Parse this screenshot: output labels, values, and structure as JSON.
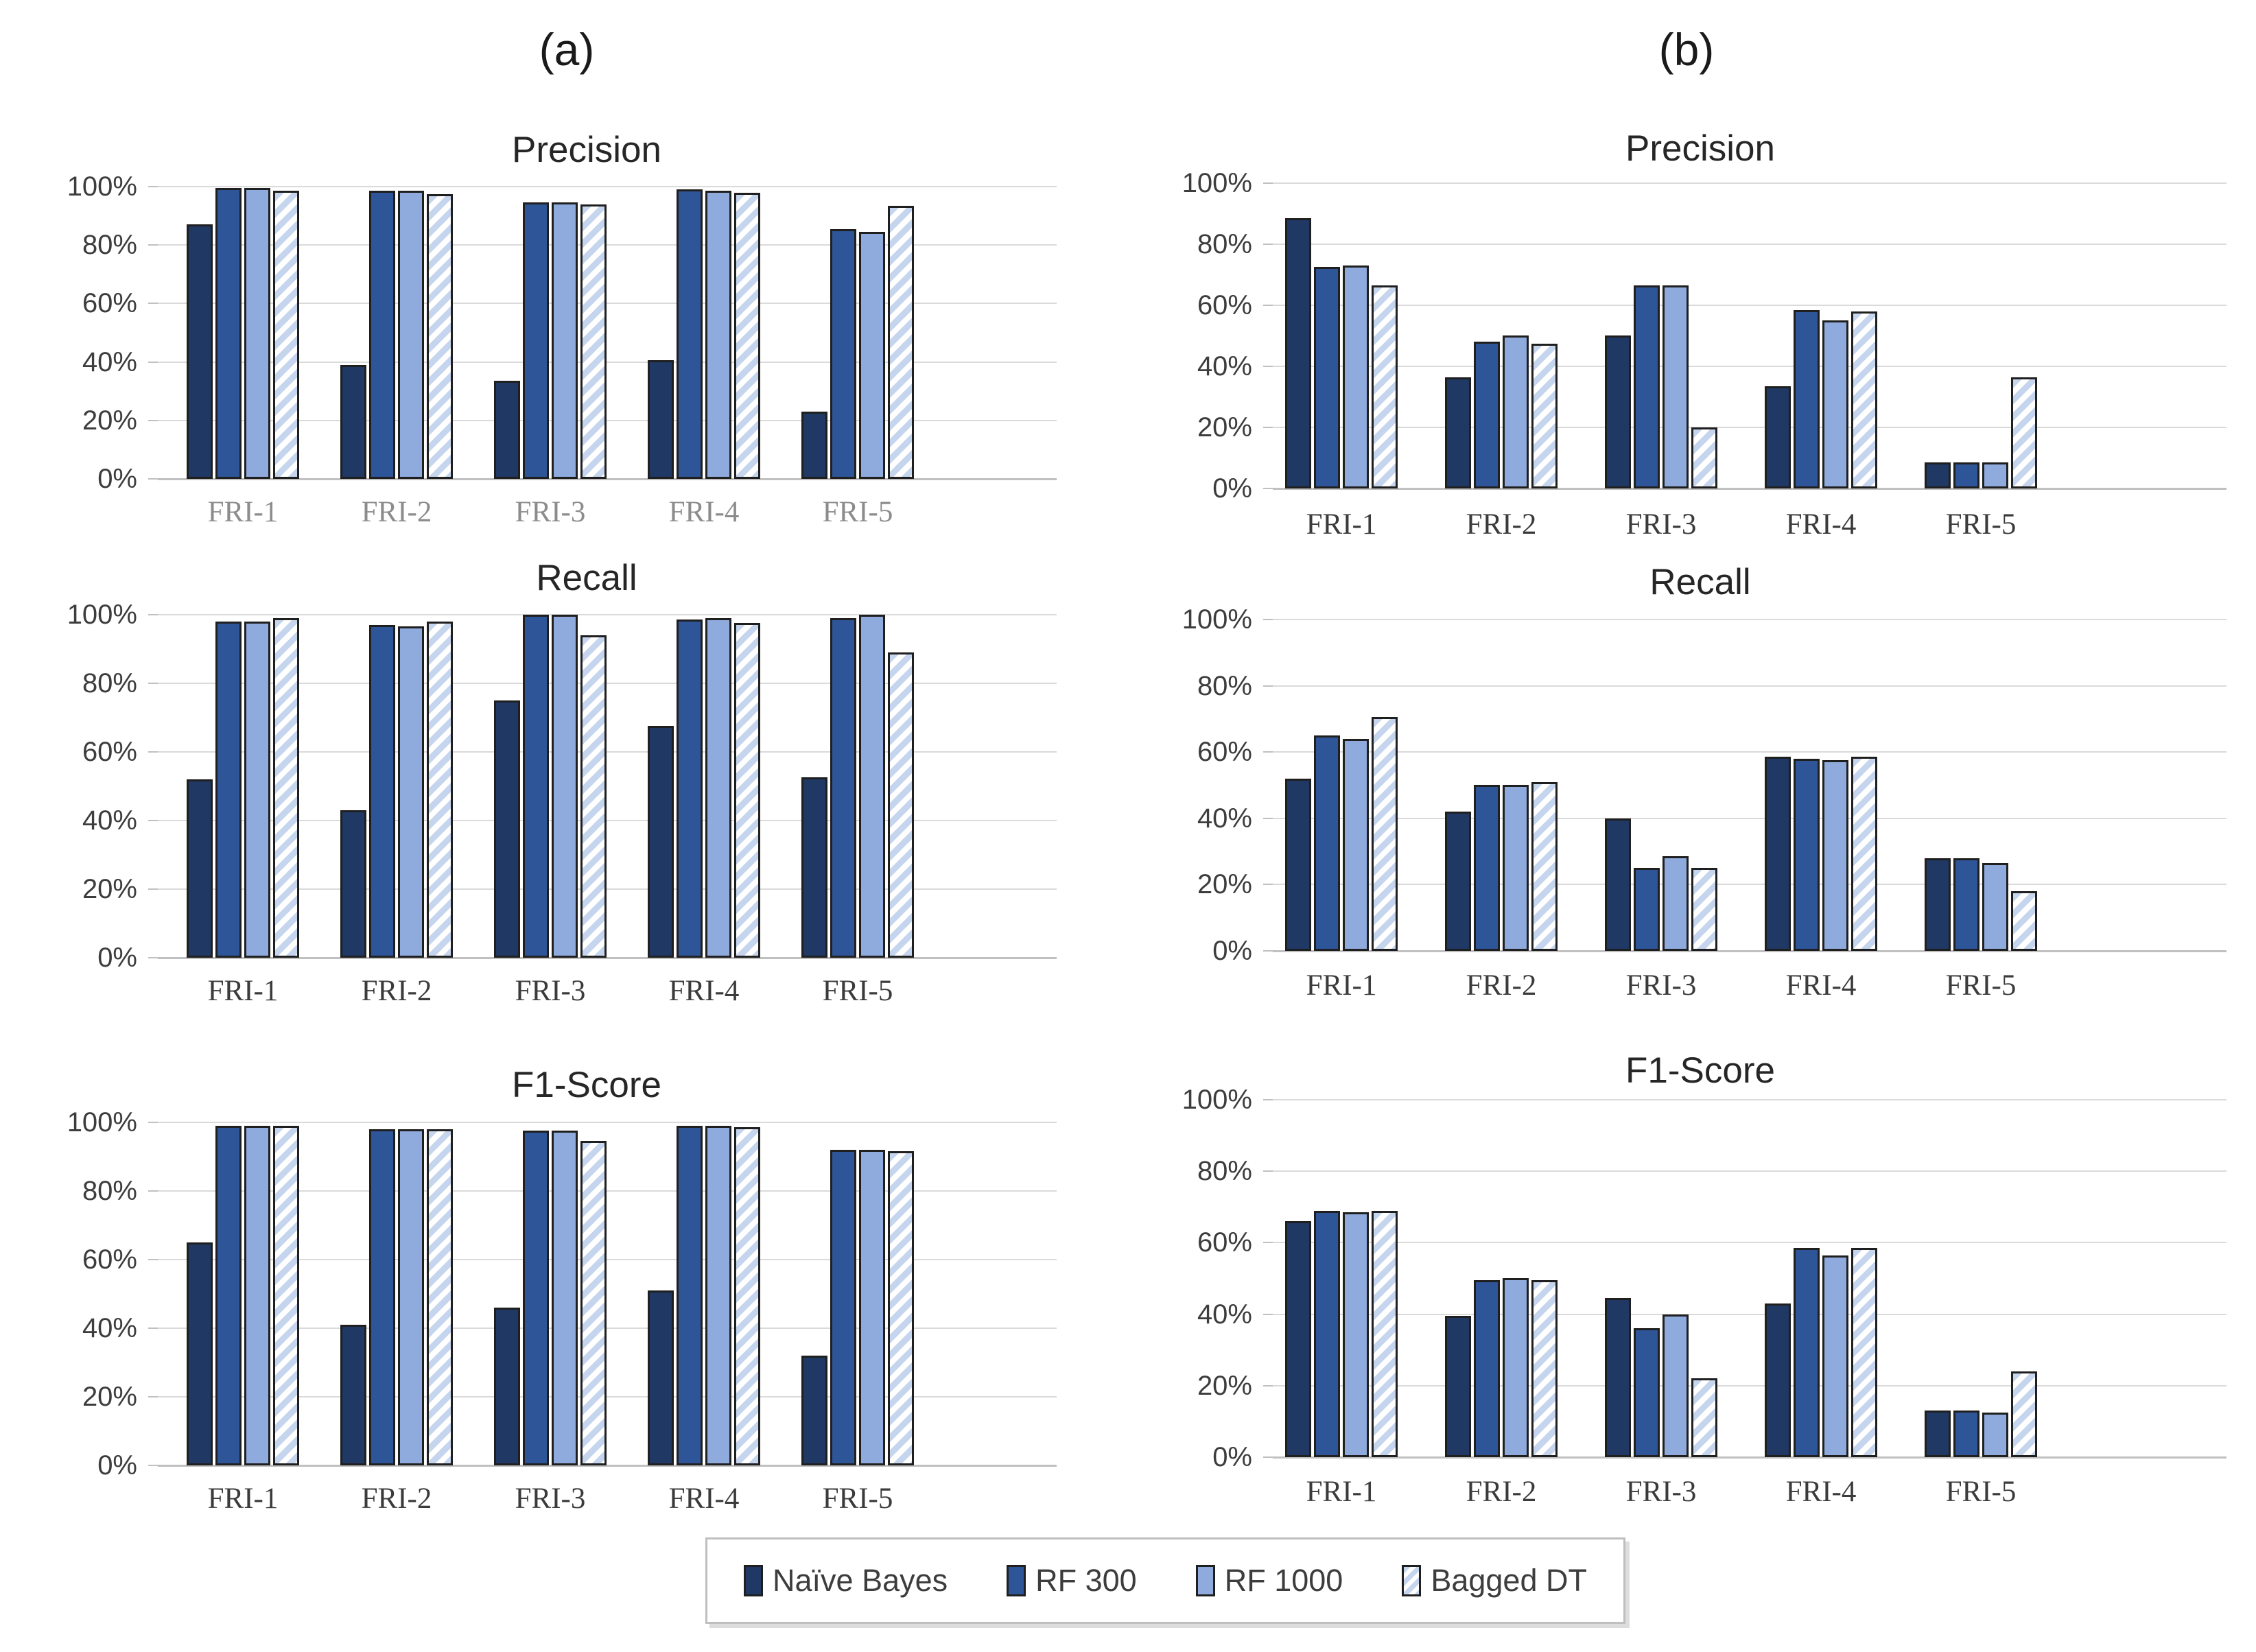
{
  "panel_labels": {
    "a": "(a)",
    "b": "(b)"
  },
  "colors": {
    "series": {
      "naive_bayes": "#1F3864",
      "rf_300": "#2E5597",
      "rf_1000": "#8FAADC",
      "bagged_dt_base": "#C6D5EE",
      "bagged_dt_stripe": "#FFFFFF"
    },
    "bar_border": "#1F1F1F",
    "gridline": "#DADADA",
    "axis_line": "#C0C0C0",
    "title_text": "#262626",
    "ytick_text": "#3D3D3D",
    "xtick_text_default": "#3B3B3B",
    "xtick_text_muted": "#8C8C8C",
    "legend_border": "#BFBFBF",
    "legend_text": "#3D3D3D"
  },
  "legend": {
    "items": [
      {
        "label": "Naïve Bayes",
        "pattern": "solid",
        "color_key": "naive_bayes"
      },
      {
        "label": "RF 300",
        "pattern": "solid",
        "color_key": "rf_300"
      },
      {
        "label": "RF 1000",
        "pattern": "solid",
        "color_key": "rf_1000"
      },
      {
        "label": "Bagged DT",
        "pattern": "striped",
        "color_key": "bagged_dt_base"
      }
    ]
  },
  "chart_data": [
    {
      "id": "a-precision",
      "panel": "a",
      "type": "bar",
      "title": "Precision",
      "categories": [
        "FRI-1",
        "FRI-2",
        "FRI-3",
        "FRI-4",
        "FRI-5"
      ],
      "series": [
        {
          "name": "Naïve Bayes",
          "values": [
            87,
            39,
            33.5,
            40.5,
            23
          ]
        },
        {
          "name": "RF 300",
          "values": [
            99.5,
            98.5,
            94.5,
            99,
            85.5
          ]
        },
        {
          "name": "RF 1000",
          "values": [
            99.5,
            98.5,
            94.5,
            98.5,
            84.5
          ]
        },
        {
          "name": "Bagged DT",
          "values": [
            98.5,
            97.5,
            94,
            98,
            93.5
          ]
        }
      ],
      "ylim": [
        0,
        100
      ],
      "yticks": [
        "0%",
        "20%",
        "40%",
        "60%",
        "80%",
        "100%"
      ],
      "grid": true,
      "x_tick_muted": true
    },
    {
      "id": "b-precision",
      "panel": "b",
      "type": "bar",
      "title": "Precision",
      "categories": [
        "FRI-1",
        "FRI-2",
        "FRI-3",
        "FRI-4",
        "FRI-5"
      ],
      "series": [
        {
          "name": "Naïve Bayes",
          "values": [
            88.5,
            36.5,
            50,
            33.5,
            8.5
          ]
        },
        {
          "name": "RF 300",
          "values": [
            72.5,
            48,
            66.5,
            58.5,
            8.5
          ]
        },
        {
          "name": "RF 1000",
          "values": [
            73,
            50,
            66.5,
            55,
            8.5
          ]
        },
        {
          "name": "Bagged DT",
          "values": [
            66.5,
            47.5,
            20,
            58,
            36.5
          ]
        }
      ],
      "ylim": [
        0,
        100
      ],
      "yticks": [
        "0%",
        "20%",
        "40%",
        "60%",
        "80%",
        "100%"
      ],
      "grid": true,
      "x_tick_muted": false
    },
    {
      "id": "a-recall",
      "panel": "a",
      "type": "bar",
      "title": "Recall",
      "categories": [
        "FRI-1",
        "FRI-2",
        "FRI-3",
        "FRI-4",
        "FRI-5"
      ],
      "series": [
        {
          "name": "Naïve Bayes",
          "values": [
            52,
            43,
            75,
            67.5,
            52.5
          ]
        },
        {
          "name": "RF 300",
          "values": [
            98,
            97,
            100,
            98.5,
            99
          ]
        },
        {
          "name": "RF 1000",
          "values": [
            98,
            96.5,
            100,
            99,
            100
          ]
        },
        {
          "name": "Bagged DT",
          "values": [
            99,
            98,
            94,
            97.5,
            89
          ]
        }
      ],
      "ylim": [
        0,
        100
      ],
      "yticks": [
        "0%",
        "20%",
        "40%",
        "60%",
        "80%",
        "100%"
      ],
      "grid": true,
      "x_tick_muted": false
    },
    {
      "id": "b-recall",
      "panel": "b",
      "type": "bar",
      "title": "Recall",
      "categories": [
        "FRI-1",
        "FRI-2",
        "FRI-3",
        "FRI-4",
        "FRI-5"
      ],
      "series": [
        {
          "name": "Naïve Bayes",
          "values": [
            52,
            42,
            40,
            58.5,
            28
          ]
        },
        {
          "name": "RF 300",
          "values": [
            65,
            50,
            25,
            58,
            28
          ]
        },
        {
          "name": "RF 1000",
          "values": [
            64,
            50,
            28.5,
            57.5,
            26.5
          ]
        },
        {
          "name": "Bagged DT",
          "values": [
            70.5,
            51,
            25,
            58.5,
            18
          ]
        }
      ],
      "ylim": [
        0,
        100
      ],
      "yticks": [
        "0%",
        "20%",
        "40%",
        "60%",
        "80%",
        "100%"
      ],
      "grid": true,
      "x_tick_muted": false
    },
    {
      "id": "a-f1-score",
      "panel": "a",
      "type": "bar",
      "title": "F1-Score",
      "categories": [
        "FRI-1",
        "FRI-2",
        "FRI-3",
        "FRI-4",
        "FRI-5"
      ],
      "series": [
        {
          "name": "Naïve Bayes",
          "values": [
            65,
            41,
            46,
            51,
            32
          ]
        },
        {
          "name": "RF 300",
          "values": [
            99,
            98,
            97.5,
            99,
            92
          ]
        },
        {
          "name": "RF 1000",
          "values": [
            99,
            98,
            97.5,
            99,
            92
          ]
        },
        {
          "name": "Bagged DT",
          "values": [
            99,
            98,
            94.5,
            98.5,
            91.5
          ]
        }
      ],
      "ylim": [
        0,
        100
      ],
      "yticks": [
        "0%",
        "20%",
        "40%",
        "60%",
        "80%",
        "100%"
      ],
      "grid": true,
      "x_tick_muted": false
    },
    {
      "id": "b-f1-score",
      "panel": "b",
      "type": "bar",
      "title": "F1-Score",
      "categories": [
        "FRI-1",
        "FRI-2",
        "FRI-3",
        "FRI-4",
        "FRI-5"
      ],
      "series": [
        {
          "name": "Naïve Bayes",
          "values": [
            66,
            39.5,
            44.5,
            43,
            13
          ]
        },
        {
          "name": "RF 300",
          "values": [
            69,
            49.5,
            36,
            58.5,
            13
          ]
        },
        {
          "name": "RF 1000",
          "values": [
            68.5,
            50,
            40,
            56.5,
            12.5
          ]
        },
        {
          "name": "Bagged DT",
          "values": [
            69,
            49.5,
            22,
            58.5,
            24
          ]
        }
      ],
      "ylim": [
        0,
        100
      ],
      "yticks": [
        "0%",
        "20%",
        "40%",
        "60%",
        "80%",
        "100%"
      ],
      "grid": true,
      "x_tick_muted": false
    }
  ]
}
